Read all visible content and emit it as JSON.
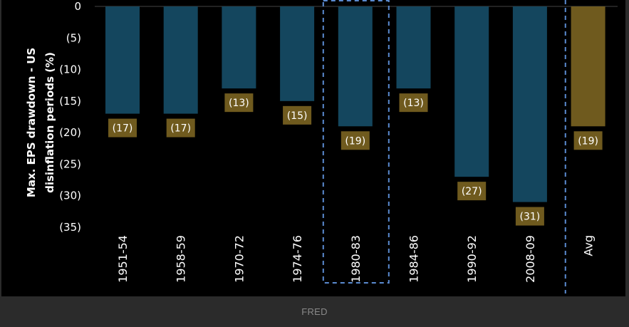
{
  "source": {
    "label": "FRED"
  },
  "colors": {
    "background": "#000000",
    "bar_period": "#14465e",
    "bar_avg": "#6f5a1e",
    "label_box": "#6f5a1e",
    "label_text": "#ffffff",
    "text": "#ffffff",
    "grid": "#444444",
    "highlight_border": "#5b8bd1"
  },
  "chart_data": {
    "type": "bar",
    "ylabel": "Max. EPS drawdown - US disinflation periods (%)",
    "ylim": [
      0,
      35
    ],
    "ytick_values": [
      0,
      5,
      10,
      15,
      20,
      25,
      30,
      35
    ],
    "ytick_labels": [
      "0",
      "(5)",
      "(10)",
      "(15)",
      "(20)",
      "(25)",
      "(30)",
      "(35)"
    ],
    "categories": [
      "1951-54",
      "1958-59",
      "1970-72",
      "1974-76",
      "1980-83",
      "1984-86",
      "1990-92",
      "2008-09",
      "Avg"
    ],
    "values": [
      17,
      17,
      13,
      15,
      19,
      13,
      27,
      31,
      19
    ],
    "data_labels": [
      "(17)",
      "(17)",
      "(13)",
      "(15)",
      "(19)",
      "(13)",
      "(27)",
      "(31)",
      "(19)"
    ],
    "highlighted_category": "1980-83",
    "average_category": "Avg"
  }
}
